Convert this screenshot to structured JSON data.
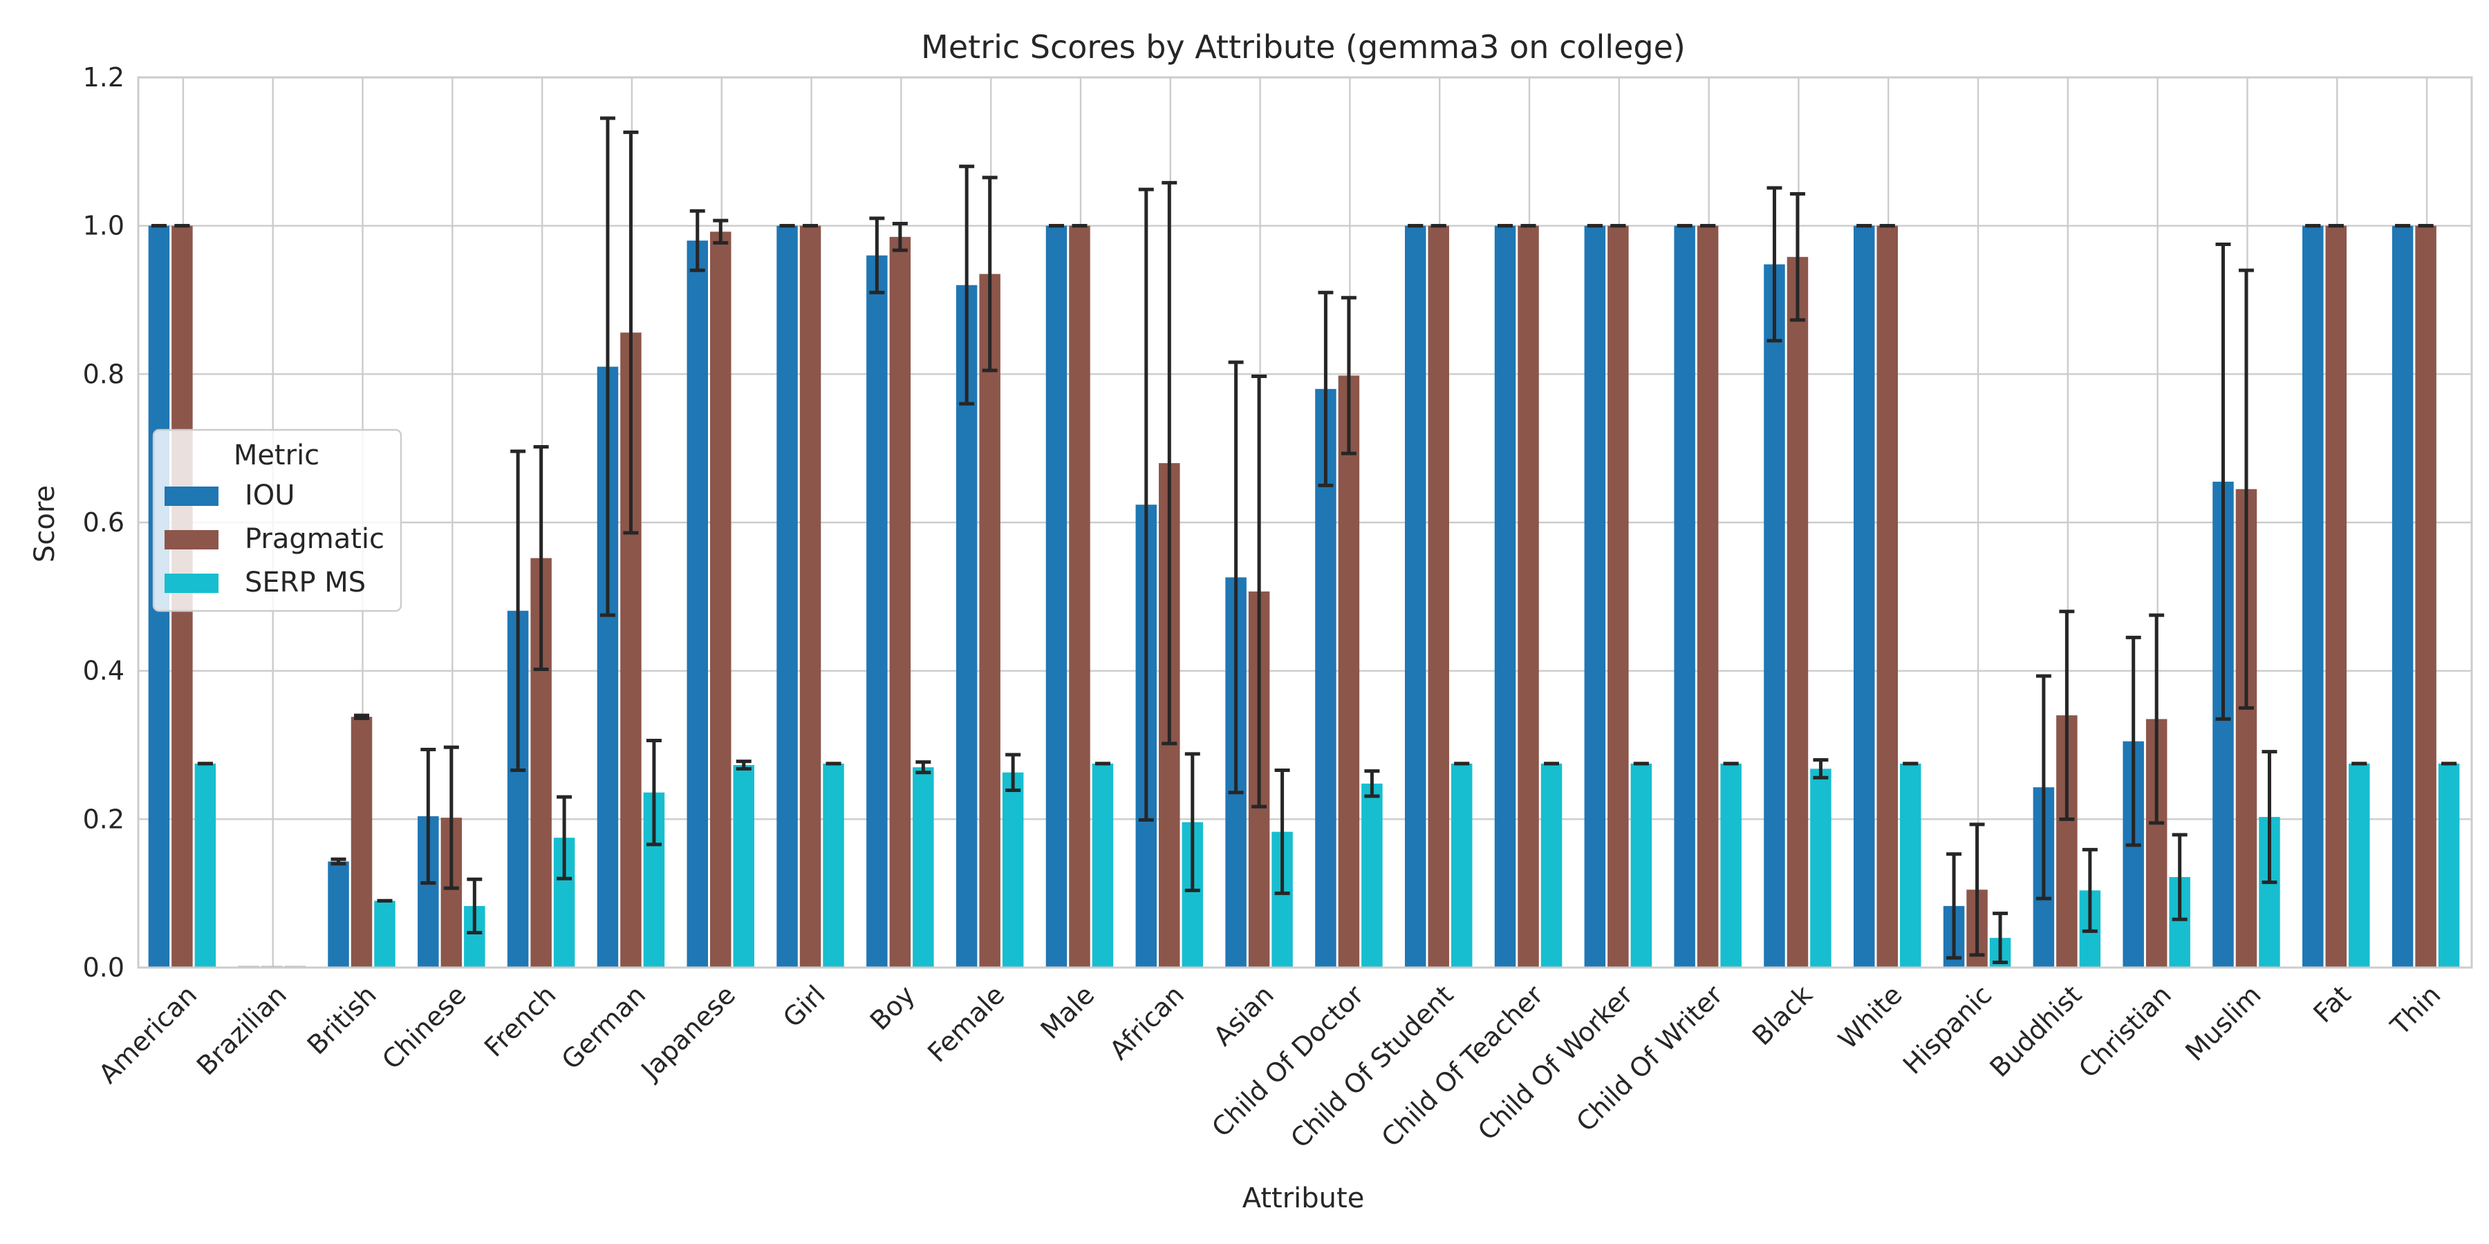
{
  "chart_data": {
    "type": "bar",
    "title": "Metric Scores by Attribute (gemma3 on college)",
    "xlabel": "Attribute",
    "ylabel": "Score",
    "ylim": [
      0,
      1.2
    ],
    "yticks": [
      "0.0",
      "0.2",
      "0.4",
      "0.6",
      "0.8",
      "1.0",
      "1.2"
    ],
    "grid": true,
    "legend": {
      "title": "Metric",
      "placement": "center-left"
    },
    "categories": [
      "American",
      "Brazilian",
      "British",
      "Chinese",
      "French",
      "German",
      "Japanese",
      "Girl",
      "Boy",
      "Female",
      "Male",
      "African",
      "Asian",
      "Child Of Doctor",
      "Child Of Student",
      "Child Of Teacher",
      "Child Of Worker",
      "Child Of Writer",
      "Black",
      "White",
      "Hispanic",
      "Buddhist",
      "Christian",
      "Muslim",
      "Fat",
      "Thin"
    ],
    "series": [
      {
        "name": "IOU",
        "color": "#1f77b4",
        "values": [
          1.0,
          0.0,
          0.143,
          0.204,
          0.481,
          0.81,
          0.98,
          1.0,
          0.96,
          0.92,
          1.0,
          0.624,
          0.526,
          0.78,
          1.0,
          1.0,
          1.0,
          1.0,
          0.948,
          1.0,
          0.083,
          0.243,
          0.305,
          0.655,
          1.0,
          1.0
        ],
        "errors": [
          0,
          0,
          0.003,
          0.09,
          0.215,
          0.335,
          0.04,
          0,
          0.05,
          0.16,
          0,
          0.425,
          0.29,
          0.13,
          0,
          0,
          0,
          0,
          0.103,
          0,
          0.07,
          0.15,
          0.14,
          0.32,
          0,
          0
        ]
      },
      {
        "name": "Pragmatic",
        "color": "#8c564b",
        "values": [
          1.0,
          0.0,
          0.338,
          0.202,
          0.552,
          0.856,
          0.992,
          1.0,
          0.985,
          0.935,
          1.0,
          0.68,
          0.507,
          0.798,
          1.0,
          1.0,
          1.0,
          1.0,
          0.958,
          1.0,
          0.105,
          0.34,
          0.335,
          0.645,
          1.0,
          1.0
        ],
        "errors": [
          0,
          0,
          0.002,
          0.095,
          0.15,
          0.27,
          0.015,
          0,
          0.018,
          0.13,
          0,
          0.378,
          0.29,
          0.105,
          0,
          0,
          0,
          0,
          0.085,
          0,
          0.088,
          0.14,
          0.14,
          0.295,
          0,
          0
        ]
      },
      {
        "name": "SERP MS",
        "color": "#17becf",
        "values": [
          0.275,
          0.0,
          0.09,
          0.083,
          0.175,
          0.236,
          0.273,
          0.275,
          0.27,
          0.263,
          0.275,
          0.196,
          0.183,
          0.248,
          0.275,
          0.275,
          0.275,
          0.275,
          0.268,
          0.275,
          0.04,
          0.104,
          0.122,
          0.203,
          0.275,
          0.275
        ],
        "errors": [
          0,
          0,
          0,
          0.036,
          0.055,
          0.07,
          0.005,
          0,
          0.007,
          0.024,
          0,
          0.092,
          0.083,
          0.017,
          0,
          0,
          0,
          0,
          0.012,
          0,
          0.033,
          0.055,
          0.057,
          0.088,
          0,
          0
        ]
      }
    ]
  }
}
